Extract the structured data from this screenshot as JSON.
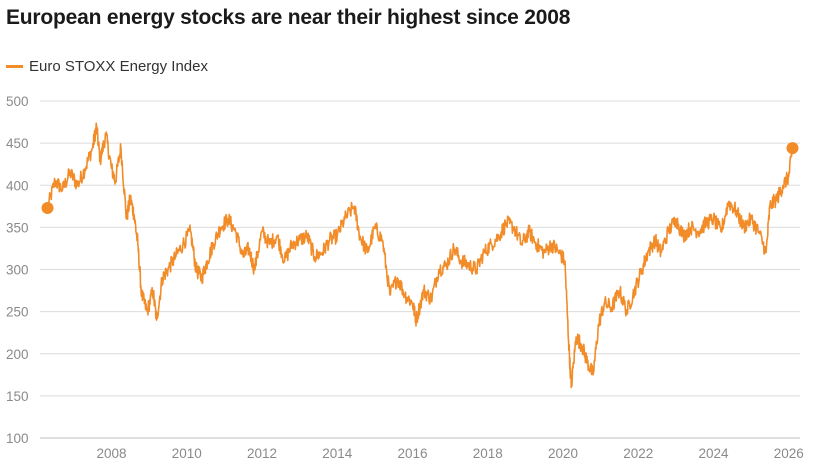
{
  "chart_data": {
    "type": "line",
    "title": "European energy stocks are near their highest since 2008",
    "xlabel": "",
    "ylabel": "",
    "grid": true,
    "legend_position": "top-left",
    "ylim": [
      100,
      500
    ],
    "xlim": [
      2006.1,
      2026.3
    ],
    "y_ticks": [
      "500",
      "450",
      "400",
      "350",
      "300",
      "250",
      "200",
      "150",
      "100"
    ],
    "x_ticks": [
      "2008",
      "2010",
      "2012",
      "2014",
      "2016",
      "2018",
      "2020",
      "2022",
      "2024",
      "2026"
    ],
    "series": [
      {
        "name": "Euro STOXX Energy Index",
        "color": "#f28c28",
        "x": [
          2006.3,
          2006.5,
          2006.7,
          2006.9,
          2007.1,
          2007.3,
          2007.5,
          2007.6,
          2007.7,
          2007.85,
          2008.0,
          2008.1,
          2008.25,
          2008.4,
          2008.5,
          2008.6,
          2008.7,
          2008.8,
          2008.95,
          2009.1,
          2009.2,
          2009.35,
          2009.5,
          2009.7,
          2009.9,
          2010.1,
          2010.25,
          2010.4,
          2010.55,
          2010.7,
          2010.9,
          2011.1,
          2011.3,
          2011.5,
          2011.65,
          2011.8,
          2012.0,
          2012.2,
          2012.4,
          2012.6,
          2012.8,
          2013.0,
          2013.2,
          2013.4,
          2013.6,
          2013.8,
          2014.0,
          2014.2,
          2014.45,
          2014.6,
          2014.8,
          2015.0,
          2015.2,
          2015.4,
          2015.6,
          2015.8,
          2016.0,
          2016.1,
          2016.3,
          2016.5,
          2016.7,
          2016.9,
          2017.1,
          2017.3,
          2017.5,
          2017.7,
          2017.9,
          2018.1,
          2018.3,
          2018.5,
          2018.7,
          2018.9,
          2019.1,
          2019.3,
          2019.5,
          2019.7,
          2019.9,
          2020.05,
          2020.15,
          2020.22,
          2020.35,
          2020.5,
          2020.65,
          2020.8,
          2020.95,
          2021.1,
          2021.3,
          2021.5,
          2021.7,
          2021.9,
          2022.1,
          2022.25,
          2022.45,
          2022.6,
          2022.8,
          2023.0,
          2023.2,
          2023.4,
          2023.6,
          2023.8,
          2024.0,
          2024.2,
          2024.4,
          2024.6,
          2024.8,
          2025.0,
          2025.2,
          2025.4,
          2025.5,
          2025.7,
          2025.85,
          2026.0,
          2026.1
        ],
        "values": [
          373,
          405,
          395,
          415,
          400,
          420,
          445,
          470,
          430,
          460,
          420,
          405,
          445,
          360,
          385,
          365,
          330,
          270,
          250,
          275,
          240,
          290,
          300,
          315,
          330,
          345,
          300,
          290,
          310,
          330,
          350,
          360,
          345,
          315,
          325,
          300,
          345,
          330,
          340,
          310,
          330,
          335,
          340,
          315,
          320,
          335,
          340,
          360,
          375,
          340,
          320,
          350,
          335,
          270,
          290,
          270,
          260,
          240,
          275,
          265,
          300,
          305,
          325,
          310,
          305,
          300,
          320,
          330,
          340,
          355,
          350,
          330,
          345,
          330,
          320,
          330,
          320,
          310,
          215,
          160,
          220,
          210,
          190,
          175,
          235,
          260,
          255,
          275,
          250,
          275,
          300,
          320,
          335,
          320,
          345,
          360,
          340,
          350,
          345,
          355,
          360,
          345,
          380,
          370,
          350,
          360,
          345,
          320,
          375,
          385,
          400,
          410,
          444
        ]
      }
    ]
  }
}
